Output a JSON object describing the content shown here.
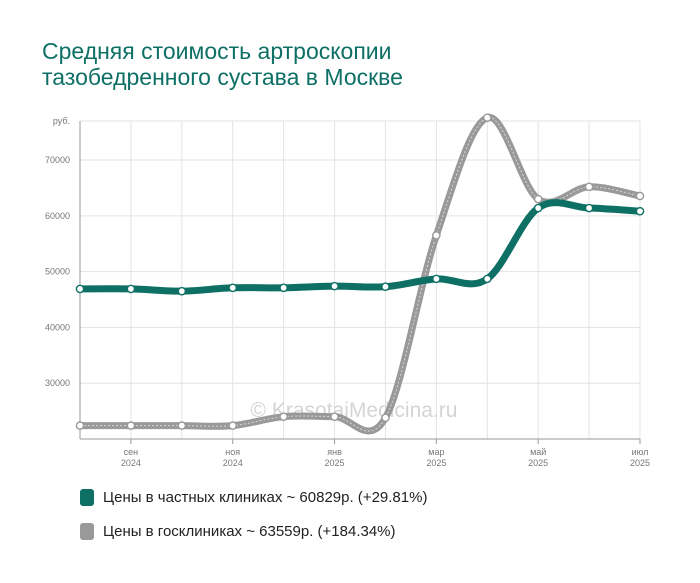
{
  "title": {
    "line1": "Средняя стоимость артроскопии",
    "line2": "тазобедренного сустава в Москве"
  },
  "watermark": "© KrasotaiMedicina.ru",
  "chart_data": {
    "type": "line",
    "ylabel": "руб.",
    "ylim": [
      20000,
      77000
    ],
    "yticks": [
      30000,
      40000,
      50000,
      60000,
      70000
    ],
    "xlim": [
      0,
      11
    ],
    "x_ticks": [
      {
        "x": 1,
        "month": "сен",
        "year": "2024"
      },
      {
        "x": 3,
        "month": "ноя",
        "year": "2024"
      },
      {
        "x": 5,
        "month": "янв",
        "year": "2025"
      },
      {
        "x": 7,
        "month": "мар",
        "year": "2025"
      },
      {
        "x": 9,
        "month": "май",
        "year": "2025"
      },
      {
        "x": 11,
        "month": "июл",
        "year": "2025"
      }
    ],
    "grid": true,
    "series": [
      {
        "name": "Цены в частных клиниках",
        "color": "#0e7065",
        "x": [
          0,
          1,
          2,
          3,
          4,
          5,
          6,
          7,
          8,
          9,
          10,
          11
        ],
        "values": [
          46900,
          46900,
          46500,
          47100,
          47100,
          47400,
          47300,
          48700,
          48700,
          61400,
          61400,
          60829
        ]
      },
      {
        "name": "Цены в госклиниках",
        "color": "#999999",
        "x": [
          0,
          1,
          2,
          3,
          4,
          5,
          6,
          7,
          8,
          9,
          10,
          11
        ],
        "values": [
          22400,
          22400,
          22400,
          22400,
          24000,
          24000,
          23800,
          56500,
          77600,
          63000,
          65200,
          63559
        ]
      }
    ]
  },
  "legend": [
    {
      "label": "Цены в частных клиниках ~ 60829р. (+29.81%)",
      "color": "#0e7065"
    },
    {
      "label": "Цены в госклиниках ~ 63559р. (+184.34%)",
      "color": "#999999"
    }
  ]
}
